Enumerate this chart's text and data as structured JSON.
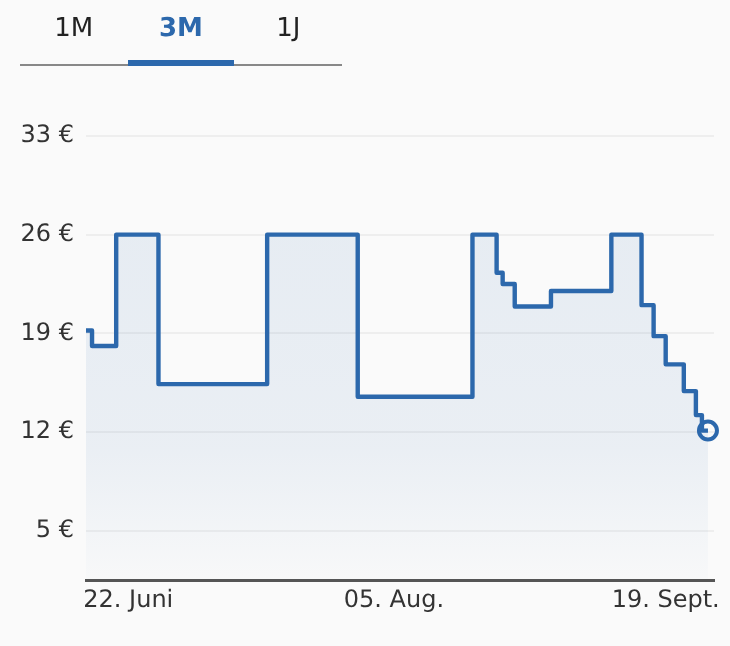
{
  "chart_data": {
    "type": "area",
    "annotations": [
      "1M",
      "3M",
      "1J"
    ],
    "x": [
      "--06-15",
      "--06-16",
      "--06-16",
      "--06-20",
      "--06-20",
      "--06-27",
      "--06-27",
      "--07-15",
      "--07-15",
      "--07-30",
      "--07-30",
      "--08-18",
      "--08-18",
      "--08-22",
      "--08-22",
      "--08-23",
      "--08-23",
      "--08-25",
      "--08-25",
      "--08-31",
      "--08-31",
      "--09-10",
      "--09-10",
      "--09-15",
      "--09-15",
      "--09-17",
      "--09-17",
      "--09-19",
      "--09-19",
      "--09-22",
      "--09-22",
      "--09-24",
      "--09-24",
      "--09-25",
      "--09-25",
      "--09-26"
    ],
    "series": [
      {
        "color": "#2c68ac",
        "values": [
          19.2,
          19.2,
          18.1,
          18.1,
          26,
          26,
          15.4,
          15.4,
          26,
          26,
          14.5,
          14.5,
          26,
          26,
          23.3,
          23.3,
          22.5,
          22.5,
          20.9,
          20.9,
          22,
          22,
          26,
          26,
          21,
          21,
          18.8,
          18.8,
          16.8,
          16.8,
          14.9,
          14.9,
          13.2,
          13.2,
          12.1,
          12.1
        ]
      }
    ],
    "xlim": [
      "--06-15",
      "--09-27"
    ],
    "xticks": [
      {
        "value": "--06-22",
        "label": "22. Juni"
      },
      {
        "value": "--08-05",
        "label": "05. Aug."
      },
      {
        "value": "--09-19",
        "label": "19. Sept."
      }
    ],
    "ylim": [
      1.5,
      33
    ],
    "yticks": [
      {
        "value": 5,
        "label": "5 €"
      },
      {
        "value": 12,
        "label": "12 €"
      },
      {
        "value": 19,
        "label": "19 €"
      },
      {
        "value": 26,
        "label": "26 €"
      },
      {
        "value": 33,
        "label": "33 €"
      }
    ],
    "grid": "y",
    "legend": false
  }
}
